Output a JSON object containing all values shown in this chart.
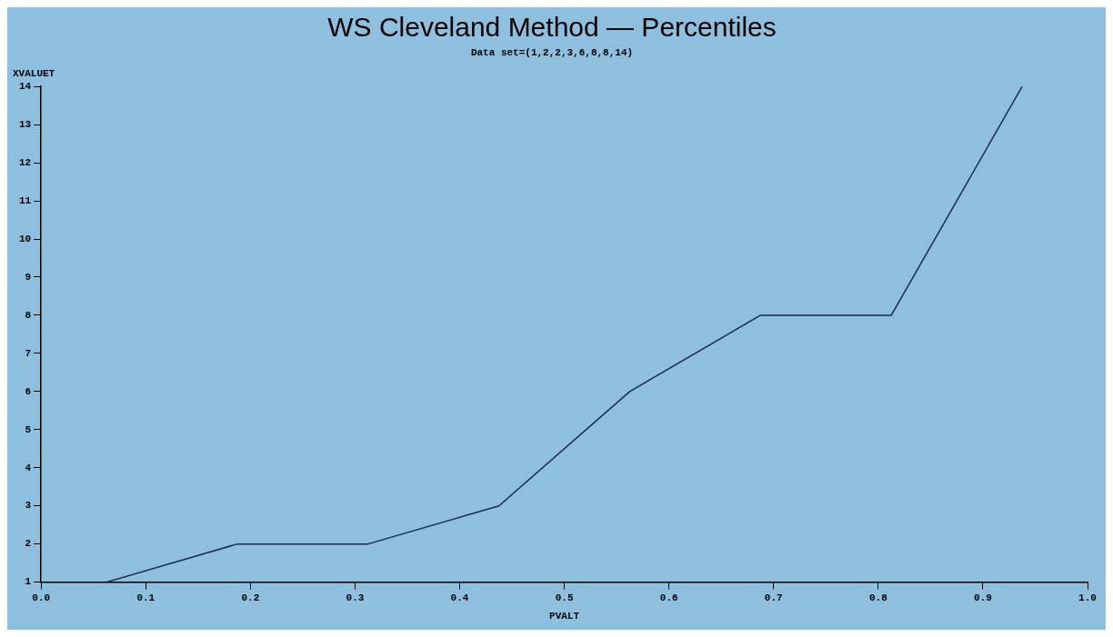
{
  "chart_data": {
    "type": "line",
    "title": "WS Cleveland Method — Percentiles",
    "subtitle": "Data set=(1,2,2,3,6,8,8,14)",
    "xlabel": "PVALT",
    "ylabel": "XVALUET",
    "x": [
      0.0625,
      0.1875,
      0.3125,
      0.4375,
      0.5625,
      0.6875,
      0.8125,
      0.9375
    ],
    "series": [
      {
        "color": "#1a2a4a",
        "values": [
          1,
          2,
          2,
          3,
          6,
          8,
          8,
          14
        ]
      }
    ],
    "xlim": [
      0,
      1
    ],
    "ylim": [
      1,
      14
    ],
    "xticks": [
      {
        "value": 0,
        "label": "0.0"
      },
      0.1,
      0.2,
      0.3,
      0.4,
      0.5,
      0.6,
      0.7,
      0.8,
      0.9,
      {
        "value": 1,
        "label": "1.0"
      }
    ],
    "yticks": [
      1,
      2,
      3,
      4,
      5,
      6,
      7,
      8,
      9,
      10,
      11,
      12,
      13,
      14
    ],
    "grid": false,
    "legend": false,
    "marker": "none",
    "line_style": "solid"
  }
}
